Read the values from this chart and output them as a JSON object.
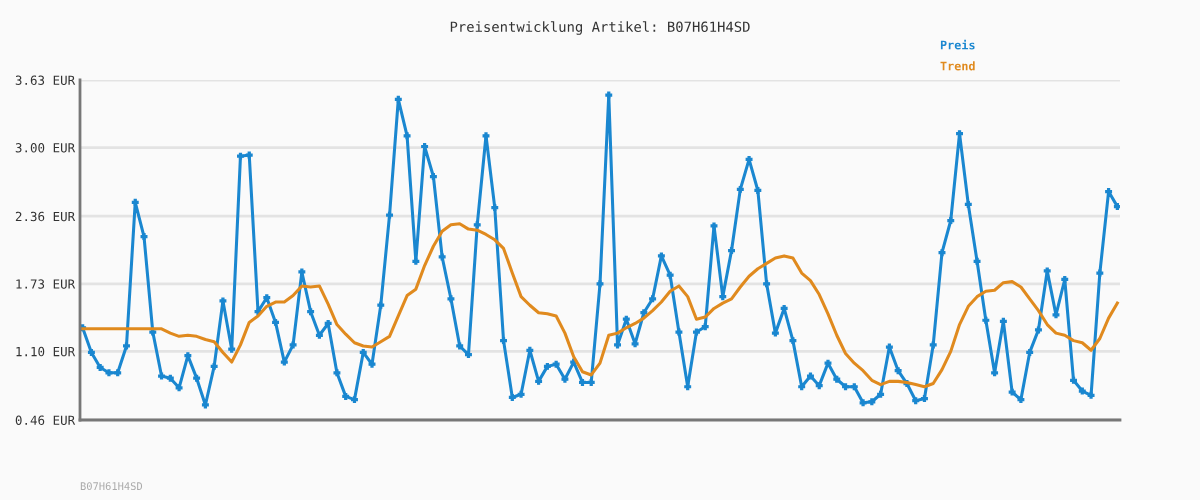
{
  "chart_data": {
    "type": "line",
    "title": "Preisentwicklung Artikel: B07H61H4SD",
    "categories": [
      null,
      null,
      null,
      null,
      null,
      null,
      null,
      null,
      null,
      null,
      null,
      null,
      null,
      null,
      null,
      null,
      null,
      null,
      null,
      null,
      null,
      null,
      null,
      null,
      null,
      null,
      null,
      null,
      null,
      null,
      null,
      null,
      null,
      null,
      null,
      null,
      null,
      null,
      null,
      null,
      null,
      null,
      null,
      null,
      null,
      null,
      null,
      null,
      null,
      null,
      null,
      null,
      null,
      null,
      null,
      null,
      null,
      null,
      null,
      null,
      null,
      null,
      null,
      null,
      null,
      null,
      null,
      null,
      null,
      null,
      null,
      null,
      null,
      null,
      null,
      null,
      null,
      null,
      null,
      null,
      null,
      null,
      null,
      null,
      null,
      null,
      null,
      null,
      null,
      null,
      null,
      null,
      null,
      null,
      null,
      null,
      null,
      null,
      null,
      null,
      null,
      null,
      null,
      null,
      null,
      null,
      null,
      null,
      null,
      null,
      null,
      null,
      null,
      null,
      null,
      null,
      null,
      null,
      null
    ],
    "series": [
      {
        "name": "Preis",
        "color": "#1a87d0",
        "marker": "cross",
        "values": [
          1.32,
          1.09,
          0.95,
          0.9,
          0.9,
          1.15,
          2.49,
          2.17,
          1.28,
          0.87,
          0.85,
          0.76,
          1.06,
          0.85,
          0.6,
          0.96,
          1.57,
          1.12,
          2.92,
          2.93,
          1.47,
          1.6,
          1.37,
          1.0,
          1.16,
          1.84,
          1.47,
          1.25,
          1.36,
          0.9,
          0.68,
          0.65,
          1.09,
          0.98,
          1.53,
          2.37,
          3.45,
          3.11,
          1.94,
          3.01,
          2.73,
          1.98,
          1.59,
          1.15,
          1.07,
          2.28,
          3.11,
          2.44,
          1.2,
          0.67,
          0.7,
          1.11,
          0.82,
          0.96,
          0.98,
          0.84,
          1.0,
          0.81,
          0.81,
          1.73,
          3.49,
          1.16,
          1.4,
          1.17,
          1.46,
          1.59,
          1.99,
          1.81,
          1.28,
          0.77,
          1.28,
          1.33,
          2.27,
          1.61,
          2.04,
          2.61,
          2.89,
          2.6,
          1.73,
          1.27,
          1.5,
          1.2,
          0.77,
          0.87,
          0.78,
          0.99,
          0.84,
          0.77,
          0.77,
          0.62,
          0.63,
          0.7,
          1.14,
          0.92,
          0.8,
          0.64,
          0.66,
          1.16,
          2.02,
          2.32,
          3.13,
          2.47,
          1.94,
          1.39,
          0.9,
          1.38,
          0.72,
          0.65,
          1.09,
          1.3,
          1.85,
          1.44,
          1.77,
          0.83,
          0.73,
          0.69,
          1.83,
          2.59,
          2.45
        ]
      },
      {
        "name": "Trend",
        "color": "#e08a1e",
        "marker": "none",
        "values": [
          1.31,
          1.31,
          1.31,
          1.31,
          1.31,
          1.31,
          1.31,
          1.31,
          1.31,
          1.31,
          1.27,
          1.24,
          1.25,
          1.24,
          1.21,
          1.19,
          1.09,
          1.0,
          1.16,
          1.37,
          1.43,
          1.52,
          1.56,
          1.56,
          1.62,
          1.71,
          1.7,
          1.71,
          1.54,
          1.35,
          1.26,
          1.18,
          1.15,
          1.14,
          1.19,
          1.24,
          1.43,
          1.62,
          1.68,
          1.9,
          2.08,
          2.22,
          2.28,
          2.29,
          2.24,
          2.23,
          2.19,
          2.14,
          2.06,
          1.83,
          1.61,
          1.53,
          1.46,
          1.45,
          1.43,
          1.27,
          1.05,
          0.91,
          0.88,
          0.99,
          1.25,
          1.27,
          1.32,
          1.36,
          1.41,
          1.48,
          1.56,
          1.66,
          1.71,
          1.61,
          1.4,
          1.42,
          1.5,
          1.55,
          1.59,
          1.7,
          1.8,
          1.87,
          1.92,
          1.97,
          1.99,
          1.97,
          1.83,
          1.76,
          1.63,
          1.45,
          1.25,
          1.08,
          0.99,
          0.92,
          0.83,
          0.79,
          0.82,
          0.82,
          0.81,
          0.79,
          0.77,
          0.8,
          0.93,
          1.1,
          1.35,
          1.52,
          1.61,
          1.66,
          1.67,
          1.74,
          1.75,
          1.7,
          1.59,
          1.48,
          1.35,
          1.27,
          1.25,
          1.2,
          1.18,
          1.11,
          1.22,
          1.41,
          1.55
        ]
      }
    ],
    "ylim": [
      0.46,
      3.63
    ],
    "yticks": [
      {
        "value": 0.46,
        "label": "0.46 EUR"
      },
      {
        "value": 1.1,
        "label": "1.10 EUR"
      },
      {
        "value": 1.73,
        "label": "1.73 EUR"
      },
      {
        "value": 2.36,
        "label": "2.36 EUR"
      },
      {
        "value": 3.0,
        "label": "3.00 EUR"
      },
      {
        "value": 3.63,
        "label": "3.63 EUR"
      }
    ],
    "grid": "y",
    "legend": "top right",
    "line_style": "solid",
    "annotations": [
      "B07H61H4SD"
    ]
  }
}
